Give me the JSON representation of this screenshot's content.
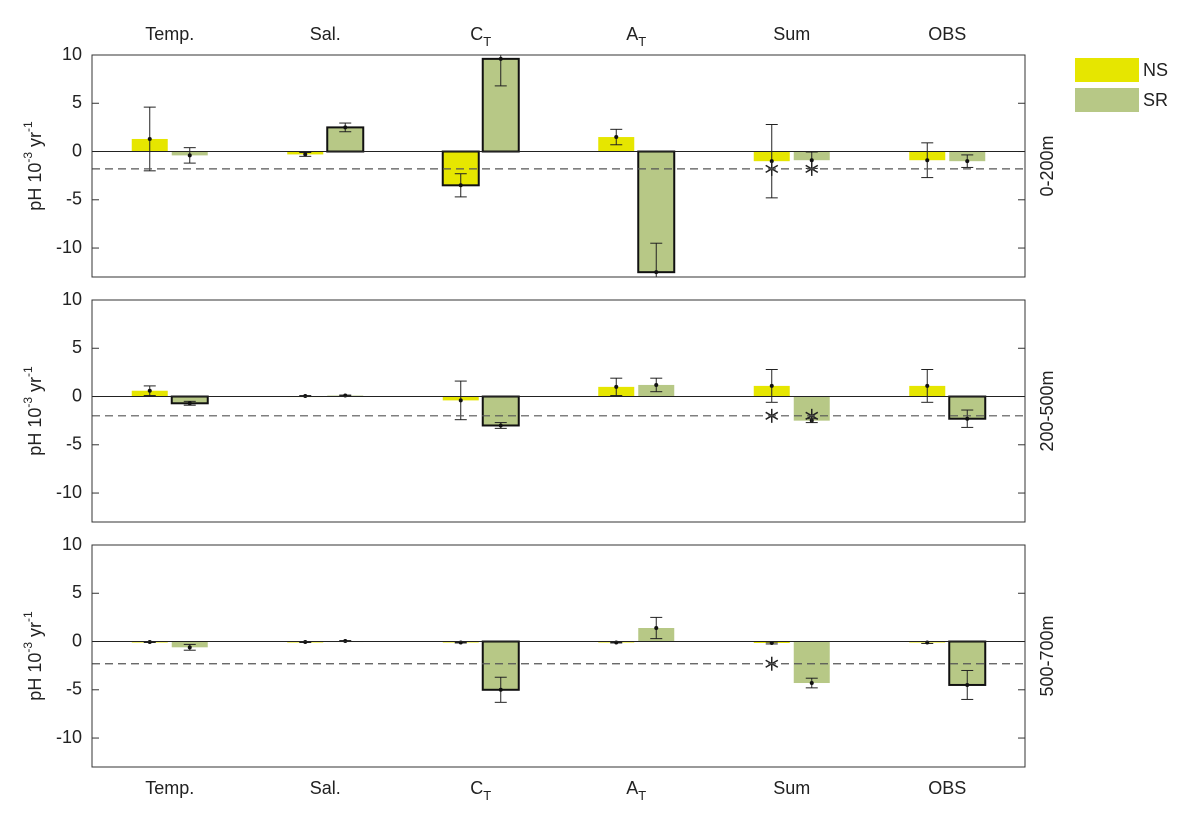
{
  "chart_data": [
    {
      "type": "bar",
      "panel_label": "0-200m",
      "ylabel": [
        "pH 10",
        "-3",
        " yr",
        "-1"
      ],
      "categories": [
        "Temp.",
        "Sal.",
        "C",
        "A",
        "Sum",
        "OBS"
      ],
      "category_subscripts": [
        null,
        null,
        "T",
        "T",
        null,
        null
      ],
      "ylim": [
        -13,
        10
      ],
      "yticks": [
        -10,
        -5,
        0,
        5,
        10
      ],
      "reference_line": -1.8,
      "series": [
        {
          "name": "NS",
          "color": "#e6e600",
          "values": [
            1.3,
            -0.3,
            -3.5,
            1.5,
            -1.0,
            -0.9
          ],
          "errors": [
            3.3,
            0.2,
            1.2,
            0.8,
            3.8,
            1.8
          ],
          "outlined": [
            false,
            false,
            true,
            false,
            false,
            false
          ],
          "starred": [
            false,
            false,
            false,
            false,
            true,
            false
          ]
        },
        {
          "name": "SR",
          "color": "#b7c886",
          "values": [
            -0.4,
            2.5,
            9.6,
            -12.5,
            -0.9,
            -1.0
          ],
          "errors": [
            0.8,
            0.45,
            2.8,
            3.0,
            0.85,
            0.65
          ],
          "outlined": [
            false,
            true,
            true,
            true,
            false,
            false
          ],
          "starred": [
            false,
            false,
            false,
            false,
            true,
            false
          ]
        }
      ]
    },
    {
      "type": "bar",
      "panel_label": "200-500m",
      "ylabel": [
        "pH 10",
        "-3",
        " yr",
        "-1"
      ],
      "categories": [
        "Temp.",
        "Sal.",
        "C",
        "A",
        "Sum",
        "OBS"
      ],
      "ylim": [
        -13,
        10
      ],
      "yticks": [
        -10,
        -5,
        0,
        5,
        10
      ],
      "reference_line": -2.0,
      "series": [
        {
          "name": "NS",
          "color": "#e6e600",
          "values": [
            0.6,
            0.05,
            -0.4,
            1.0,
            1.1,
            1.1
          ],
          "errors": [
            0.5,
            0.05,
            2.0,
            0.9,
            1.7,
            1.7
          ],
          "outlined": [
            false,
            false,
            false,
            false,
            false,
            false
          ],
          "starred": [
            false,
            false,
            false,
            false,
            true,
            false
          ]
        },
        {
          "name": "SR",
          "color": "#b7c886",
          "values": [
            -0.7,
            0.1,
            -3.0,
            1.2,
            -2.5,
            -2.3
          ],
          "errors": [
            0.2,
            0.05,
            0.3,
            0.7,
            0.2,
            0.9
          ],
          "outlined": [
            true,
            false,
            true,
            false,
            false,
            true
          ],
          "starred": [
            false,
            false,
            false,
            false,
            true,
            false
          ]
        }
      ]
    },
    {
      "type": "bar",
      "panel_label": "500-700m",
      "ylabel": [
        "pH 10",
        "-3",
        " yr",
        "-1"
      ],
      "categories": [
        "Temp.",
        "Sal.",
        "C",
        "A",
        "Sum",
        "OBS"
      ],
      "category_subscripts": [
        null,
        null,
        "T",
        "T",
        null,
        null
      ],
      "ylim": [
        -13,
        10
      ],
      "yticks": [
        -10,
        -5,
        0,
        5,
        10
      ],
      "reference_line": -2.3,
      "series": [
        {
          "name": "NS",
          "color": "#e6e600",
          "values": [
            -0.05,
            -0.05,
            -0.1,
            -0.1,
            -0.15,
            -0.1
          ],
          "errors": [
            0.05,
            0.05,
            0.05,
            0.05,
            0.1,
            0.1
          ],
          "outlined": [
            false,
            false,
            false,
            false,
            false,
            false
          ],
          "starred": [
            false,
            false,
            false,
            false,
            true,
            false
          ]
        },
        {
          "name": "SR",
          "color": "#b7c886",
          "values": [
            -0.6,
            0.05,
            -5.0,
            1.4,
            -4.3,
            -4.5
          ],
          "errors": [
            0.3,
            0.05,
            1.3,
            1.1,
            0.5,
            1.5
          ],
          "outlined": [
            false,
            false,
            true,
            false,
            false,
            true
          ],
          "starred": [
            false,
            false,
            false,
            false,
            false,
            false
          ]
        }
      ]
    }
  ]
}
